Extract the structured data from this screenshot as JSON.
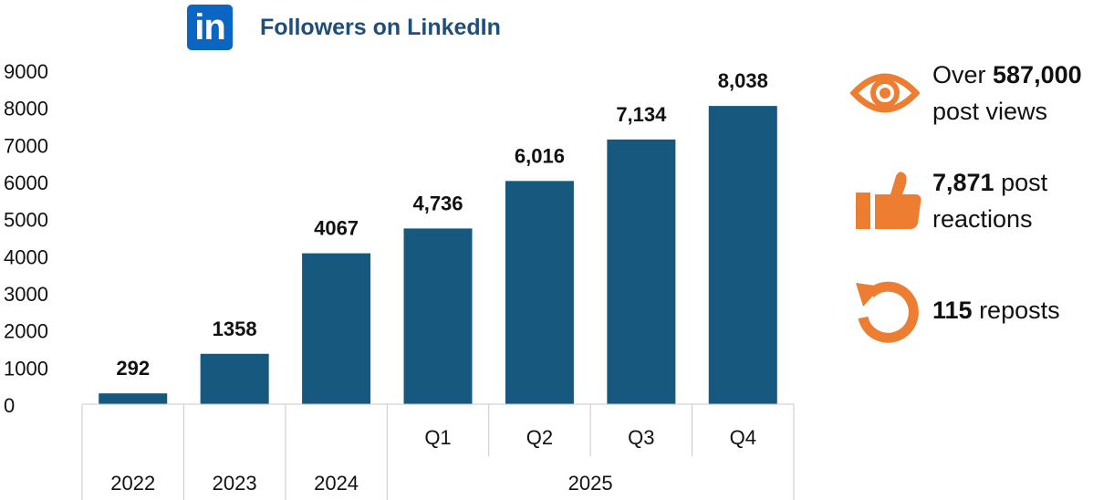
{
  "header": {
    "logo_text": "in",
    "title": "Followers on LinkedIn"
  },
  "colors": {
    "bar": "#17597e",
    "accent": "#ed7d31",
    "linkedin": "#0a66c2"
  },
  "chart_data": {
    "type": "bar",
    "title": "Followers on LinkedIn",
    "categories": [
      "2022",
      "2023",
      "2024",
      "2025 Q1",
      "2025 Q2",
      "2025 Q3",
      "2025 Q4"
    ],
    "sub_labels": [
      "",
      "",
      "",
      "Q1",
      "Q2",
      "Q3",
      "Q4"
    ],
    "group_labels": [
      {
        "label": "2022",
        "span": 1
      },
      {
        "label": "2023",
        "span": 1
      },
      {
        "label": "2024",
        "span": 1
      },
      {
        "label": "2025",
        "span": 4
      }
    ],
    "values": [
      292,
      1358,
      4067,
      4736,
      6016,
      7134,
      8038
    ],
    "data_labels": [
      "292",
      "1358",
      "4067",
      "4,736",
      "6,016",
      "7,134",
      "8,038"
    ],
    "yticks": [
      "0",
      "1000",
      "2000",
      "3000",
      "4000",
      "5000",
      "6000",
      "7000",
      "8000",
      "9000"
    ],
    "ylim": [
      0,
      9000
    ],
    "grid": false,
    "legend": "none"
  },
  "stats": [
    {
      "icon": "eye-icon",
      "prefix": "Over ",
      "bold": "587,000",
      "line2": "post views"
    },
    {
      "icon": "thumbs-up-icon",
      "bold": "7,871",
      "suffix": " post",
      "line2": "reactions"
    },
    {
      "icon": "repost-icon",
      "bold": "115",
      "suffix": " reposts"
    }
  ]
}
